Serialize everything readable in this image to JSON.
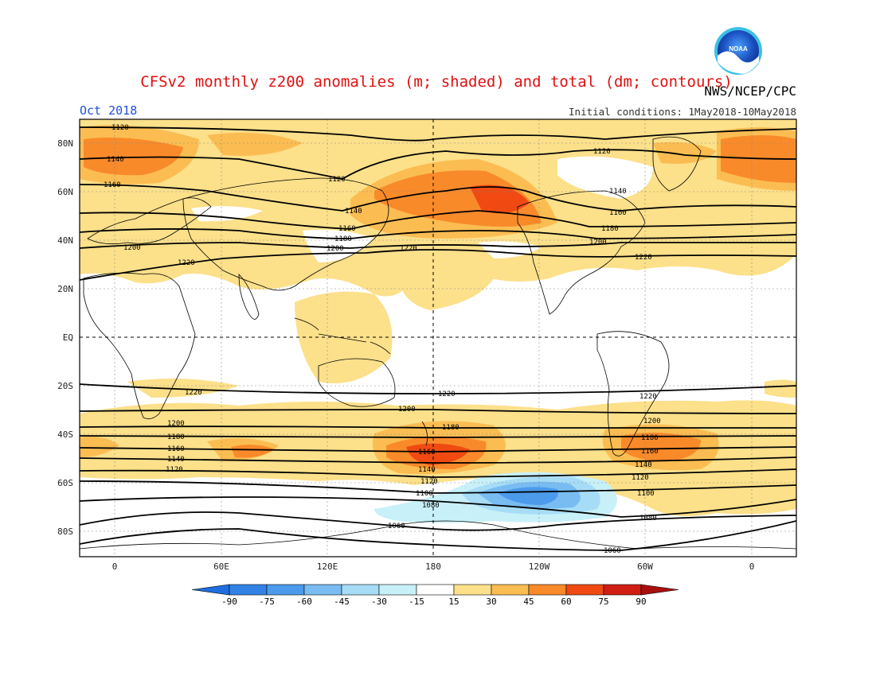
{
  "title": "CFSv2 monthly z200 anomalies (m; shaded) and total (dm; contours)",
  "month": "Oct 2018",
  "agency": "NWS/NCEP/CPC",
  "initial_conditions": "Initial conditions: 1May2018-10May2018",
  "logo_text": "NOAA",
  "lat_labels": [
    "80N",
    "60N",
    "40N",
    "20N",
    "EQ",
    "20S",
    "40S",
    "60S",
    "80S"
  ],
  "lon_labels": [
    "0",
    "60E",
    "120E",
    "180",
    "120W",
    "60W",
    "0"
  ],
  "contour_labels": {
    "north": [
      "1120",
      "1140",
      "1160",
      "1120",
      "1140",
      "1160",
      "1180",
      "1200",
      "1220",
      "1200",
      "1220",
      "1120",
      "1140",
      "1160",
      "1180",
      "1200",
      "1220"
    ],
    "south": [
      "1220",
      "1220",
      "1220",
      "1200",
      "1200",
      "1180",
      "1180",
      "1160",
      "1140",
      "1120",
      "1160",
      "1140",
      "1120",
      "1100",
      "1080",
      "1060",
      "1060",
      "1200",
      "1180",
      "1160",
      "1140",
      "1120",
      "1100",
      "1080"
    ]
  },
  "colorbar": {
    "labels": [
      "-90",
      "-75",
      "-60",
      "-45",
      "-30",
      "-15",
      "15",
      "30",
      "45",
      "60",
      "75",
      "90"
    ],
    "colors": [
      "#1e6ee0",
      "#3282e6",
      "#4c9aec",
      "#78bcf2",
      "#a6dcf6",
      "#c8f0f8",
      "#ffffff",
      "#fce08a",
      "#fbbd52",
      "#f98a2a",
      "#f04a12",
      "#d01e12",
      "#a81010"
    ]
  },
  "palette": {
    "title_red": "#e01010",
    "month_blue": "#2050e0"
  }
}
